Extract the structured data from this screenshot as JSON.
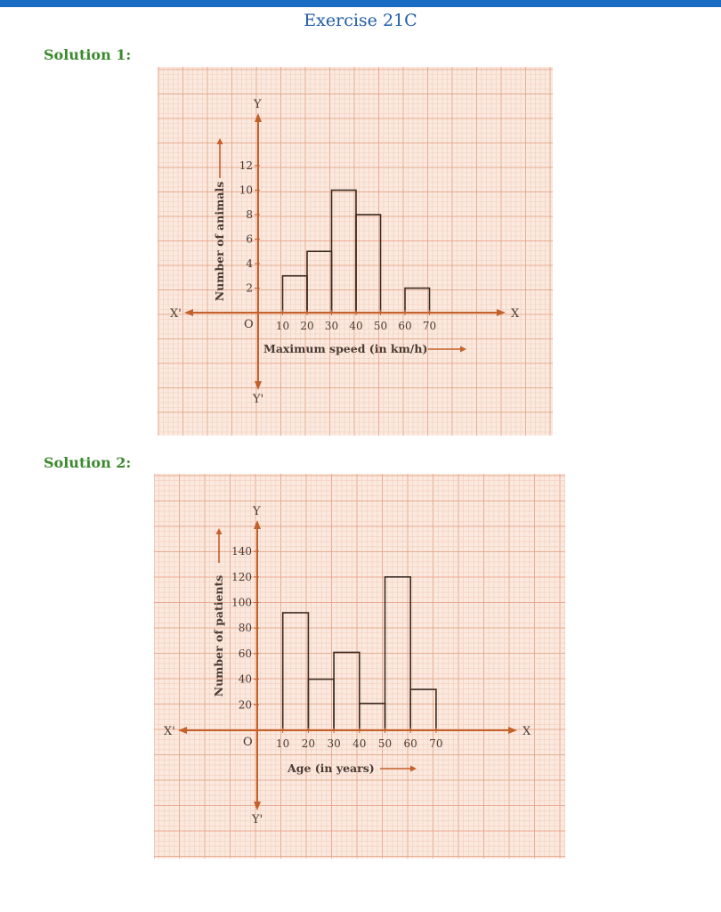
{
  "page": {
    "title": "Exercise 21C"
  },
  "solutions": [
    {
      "label": "Solution 1:"
    },
    {
      "label": "Solution 2:"
    }
  ],
  "colors": {
    "accent_bar": "#1a6cc2",
    "title": "#1f5ba8",
    "solution_label": "#3c8a2e",
    "graph_paper": "#fbe9df",
    "grid_minor": "#f2cdbb",
    "grid_major": "#e7ab90",
    "ink": "#c4602a"
  },
  "chart_data": [
    {
      "type": "bar",
      "style": "histogram",
      "bins": [
        [
          10,
          20
        ],
        [
          20,
          30
        ],
        [
          30,
          40
        ],
        [
          40,
          50
        ],
        [
          50,
          60
        ],
        [
          60,
          70
        ]
      ],
      "values": [
        3,
        5,
        10,
        8,
        0,
        2
      ],
      "x_ticks": [
        "10",
        "20",
        "30",
        "40",
        "50",
        "60",
        "70"
      ],
      "y_ticks": [
        "2",
        "4",
        "6",
        "8",
        "10",
        "12"
      ],
      "xlabel": "Maximum speed  (in km/h)",
      "ylabel": "Number of animals",
      "xlim": [
        0,
        70
      ],
      "ylim": [
        0,
        12
      ],
      "axis_labels": {
        "x_pos": "X",
        "x_neg": "X'",
        "y_pos": "Y",
        "y_neg": "Y'",
        "origin": "O"
      },
      "grid": true
    },
    {
      "type": "bar",
      "style": "histogram",
      "bins": [
        [
          10,
          20
        ],
        [
          20,
          30
        ],
        [
          30,
          40
        ],
        [
          40,
          50
        ],
        [
          50,
          60
        ],
        [
          60,
          70
        ]
      ],
      "values": [
        92,
        40,
        61,
        21,
        120,
        32
      ],
      "x_ticks": [
        "10",
        "20",
        "30",
        "40",
        "50",
        "60",
        "70"
      ],
      "y_ticks": [
        "20",
        "40",
        "60",
        "80",
        "100",
        "120",
        "140"
      ],
      "xlabel": "Age (in years)",
      "ylabel": "Number of patients",
      "xlim": [
        0,
        70
      ],
      "ylim": [
        0,
        140
      ],
      "axis_labels": {
        "x_pos": "X",
        "x_neg": "X'",
        "y_pos": "Y",
        "y_neg": "Y'",
        "origin": "O"
      },
      "grid": true
    }
  ]
}
